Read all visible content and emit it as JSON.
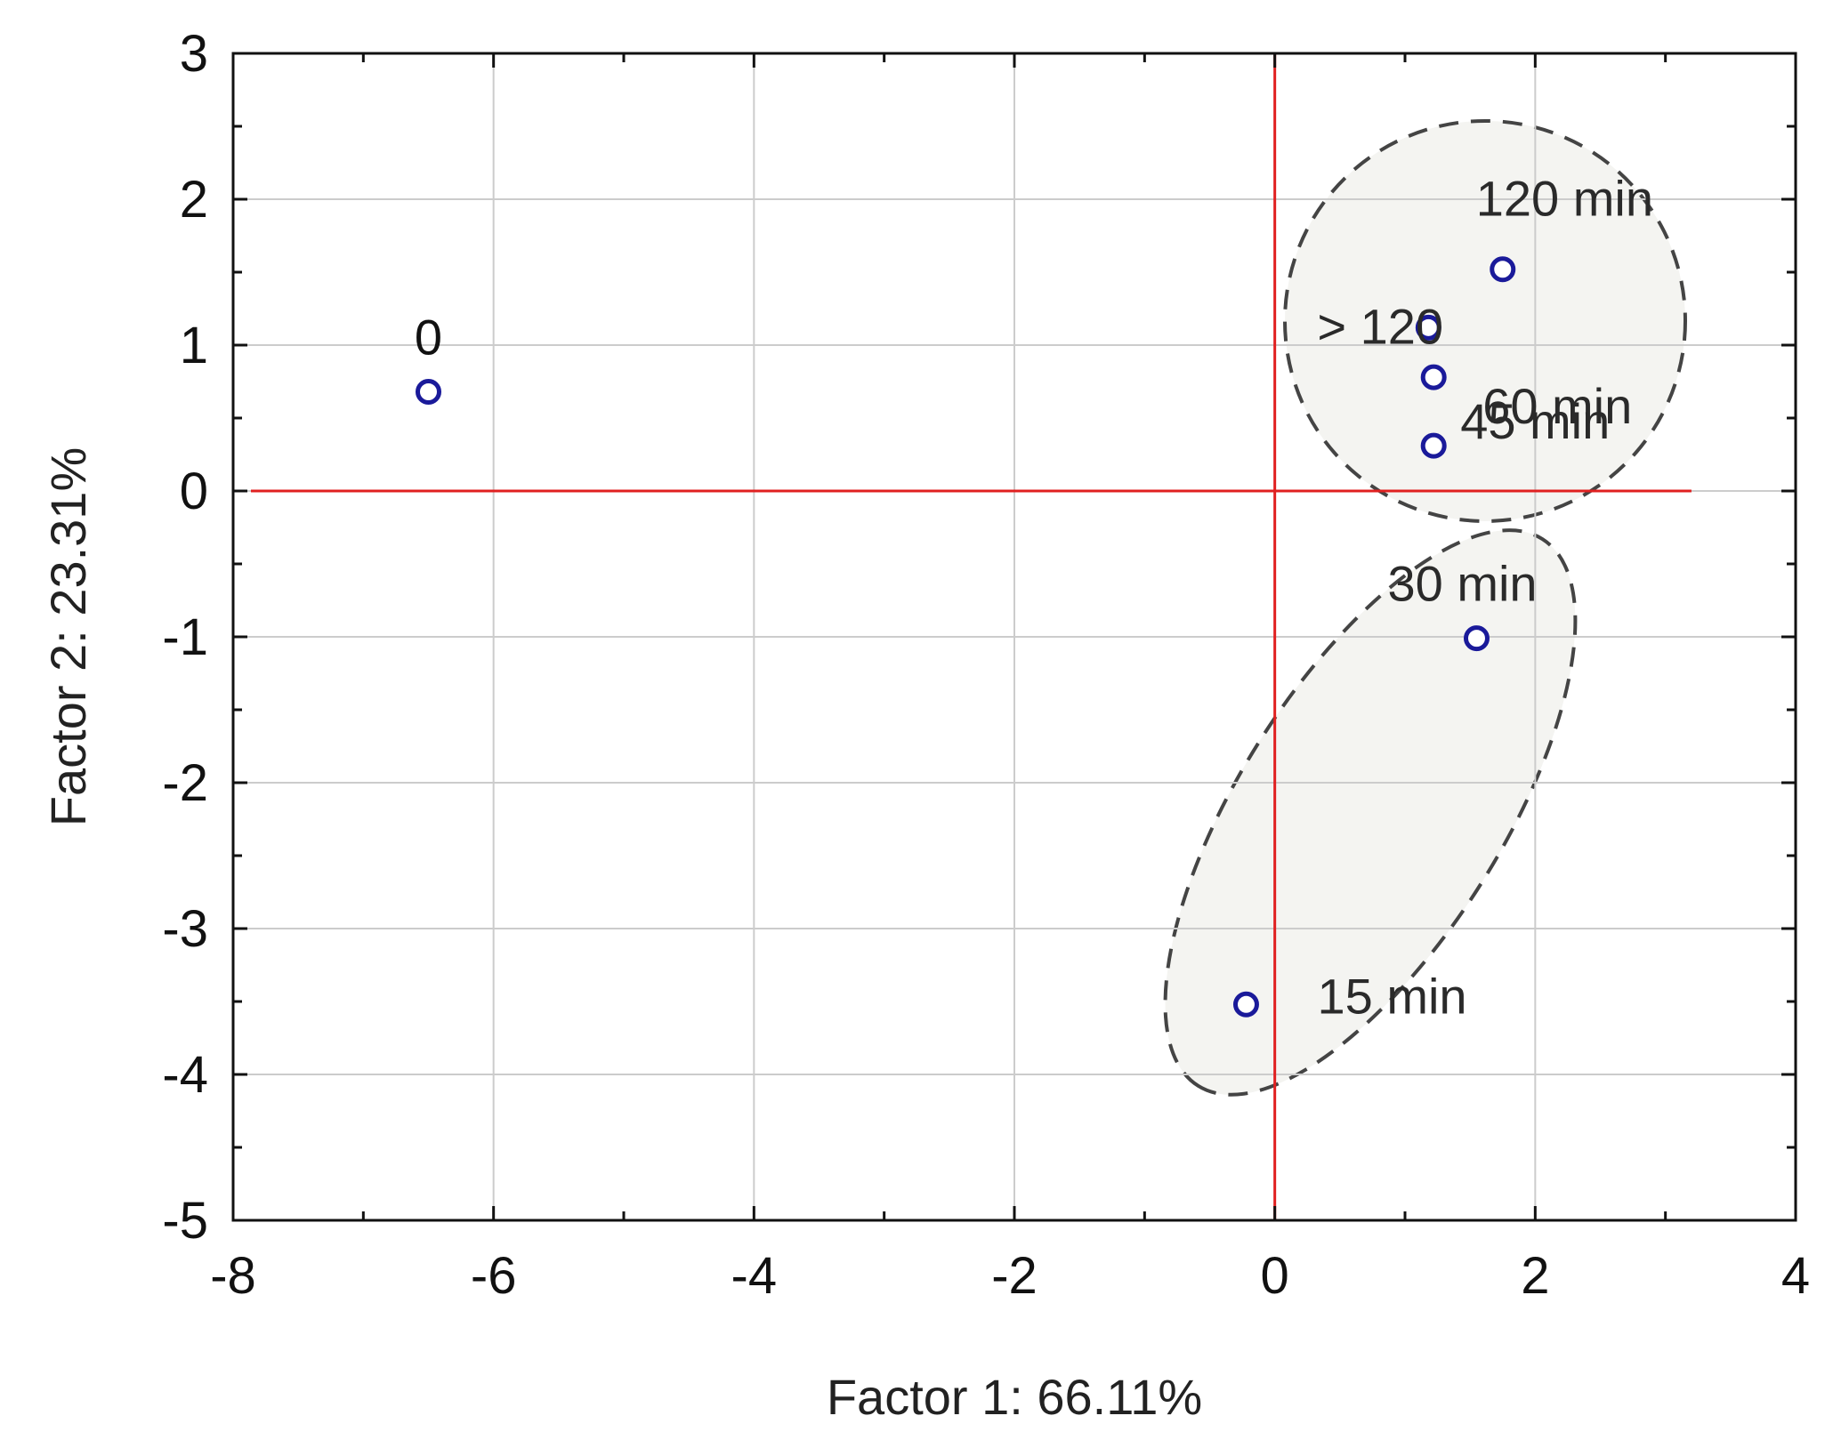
{
  "chart_data": {
    "type": "scatter",
    "title": "",
    "xlabel": "Factor 1: 66.11%",
    "ylabel": "Factor 2: 23.31%",
    "xlim": [
      -8,
      4
    ],
    "ylim": [
      -5,
      3
    ],
    "xticks": [
      "-8",
      "-6",
      "-4",
      "-2",
      "0",
      "2",
      "4"
    ],
    "yticks": [
      "3",
      "2",
      "1",
      "0",
      "-1",
      "-2",
      "-3",
      "-4",
      "-5"
    ],
    "grid": true,
    "reference_lines": {
      "x": 0,
      "y": 0,
      "color": "#e02020"
    },
    "marker_color": "#1a1a9a",
    "points": [
      {
        "label": "0",
        "x": -6.5,
        "y": 0.68
      },
      {
        "label": "120 min",
        "x": 1.75,
        "y": 1.52
      },
      {
        "label": "> 120",
        "x": 1.18,
        "y": 1.12
      },
      {
        "label": "60 min",
        "x": 1.22,
        "y": 0.78
      },
      {
        "label": "45 min",
        "x": 1.22,
        "y": 0.31
      },
      {
        "label": "30 min",
        "x": 1.55,
        "y": -1.01
      },
      {
        "label": "15 min",
        "x": -0.22,
        "y": -3.52
      }
    ],
    "clusters": [
      {
        "members": [
          "120 min",
          "> 120",
          "60 min",
          "45 min"
        ]
      },
      {
        "members": [
          "30 min",
          "15 min"
        ]
      }
    ]
  }
}
